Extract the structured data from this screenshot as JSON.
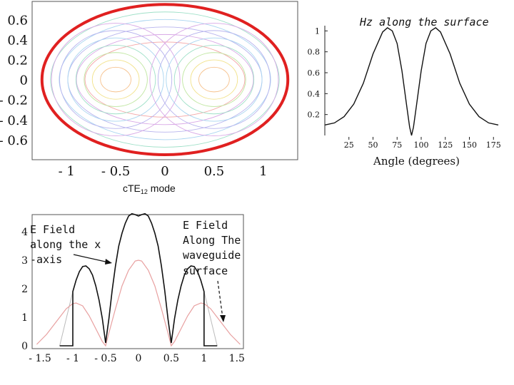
{
  "slide": {
    "mode_caption_main": "cTE",
    "mode_caption_sub": "12",
    "mode_caption_tail": " mode",
    "annotation_xaxis": [
      "E Field",
      "along the x",
      "-axis"
    ],
    "annotation_surface": [
      "E Field",
      "Along The",
      "waveguide",
      "surface"
    ]
  },
  "chart_data": [
    {
      "type": "contour",
      "title": "",
      "x_ticks": [
        "- 1",
        "- 0.5",
        "0",
        "0.5",
        "1"
      ],
      "x_tick_values": [
        -1,
        -0.5,
        0,
        0.5,
        1
      ],
      "y_ticks": [
        "0.6",
        "0.4",
        "0.2",
        "0",
        "- 0.2",
        "- 0.4",
        "- 0.6"
      ],
      "y_tick_values": [
        0.6,
        0.4,
        0.2,
        0,
        -0.2,
        -0.4,
        -0.6
      ],
      "xlim": [
        -1.35,
        1.35
      ],
      "ylim": [
        -0.8,
        0.78
      ],
      "boundary": {
        "shape": "ellipse",
        "semi_major": 1.25,
        "semi_minor": 0.75,
        "color": "#e02020"
      },
      "field_peaks_x": [
        -0.5,
        0.5
      ],
      "contour_levels": 12
    },
    {
      "type": "line",
      "title": "Hz along the surface",
      "xlabel": "Angle (degrees)",
      "x_ticks": [
        25,
        50,
        75,
        100,
        125,
        150,
        175
      ],
      "y_ticks": [
        0.2,
        0.4,
        0.6,
        0.8,
        1
      ],
      "xlim": [
        0,
        180
      ],
      "ylim": [
        0,
        1.05
      ],
      "series": [
        {
          "x": [
            0,
            10,
            20,
            30,
            40,
            50,
            60,
            65,
            70,
            75,
            80,
            85,
            88,
            90,
            92,
            95,
            100,
            105,
            110,
            115,
            120,
            130,
            140,
            150,
            160,
            170,
            180
          ],
          "y": [
            0.1,
            0.12,
            0.18,
            0.3,
            0.5,
            0.78,
            0.99,
            1.03,
            1.0,
            0.88,
            0.62,
            0.28,
            0.08,
            0.0,
            0.08,
            0.28,
            0.62,
            0.88,
            1.0,
            1.03,
            0.99,
            0.78,
            0.5,
            0.3,
            0.18,
            0.12,
            0.1
          ],
          "color": "#111111"
        }
      ]
    },
    {
      "type": "line",
      "title": "",
      "x_ticks": [
        "- 1.5",
        "- 1",
        "- 0.5",
        "0",
        "0.5",
        "1",
        "1.5"
      ],
      "x_tick_values": [
        -1.5,
        -1,
        -0.5,
        0,
        0.5,
        1,
        1.5
      ],
      "y_ticks": [
        0,
        1,
        2,
        3,
        4
      ],
      "xlim": [
        -1.62,
        1.6
      ],
      "ylim": [
        -0.1,
        4.6
      ],
      "series": [
        {
          "x": [
            -1.2,
            -1,
            -1,
            -0.95,
            -0.9,
            -0.85,
            -0.8,
            -0.75,
            -0.7,
            -0.65,
            -0.6,
            -0.55,
            -0.5,
            -0.45,
            -0.4,
            -0.35,
            -0.3,
            -0.25,
            -0.2,
            -0.15,
            -0.1,
            -0.05,
            0,
            0.05,
            0.1,
            0.15,
            0.2,
            0.25,
            0.3,
            0.35,
            0.4,
            0.45,
            0.5,
            0.55,
            0.6,
            0.65,
            0.7,
            0.75,
            0.8,
            0.85,
            0.9,
            0.95,
            1,
            1,
            1.2
          ],
          "y": [
            0,
            0,
            1.9,
            2.3,
            2.6,
            2.78,
            2.8,
            2.7,
            2.48,
            2.1,
            1.6,
            0.95,
            0.1,
            0.95,
            1.95,
            2.8,
            3.5,
            3.95,
            4.3,
            4.55,
            4.63,
            4.6,
            4.55,
            4.6,
            4.63,
            4.55,
            4.3,
            3.95,
            3.5,
            2.8,
            1.95,
            0.95,
            0.1,
            0.95,
            1.6,
            2.1,
            2.48,
            2.7,
            2.8,
            2.78,
            2.6,
            2.3,
            1.9,
            0,
            0
          ],
          "color": "#111111"
        },
        {
          "x": [
            -1.55,
            -1.4,
            -1.25,
            -1.1,
            -1.0,
            -0.95,
            -0.85,
            -0.75,
            -0.65,
            -0.55,
            -0.5,
            -0.45,
            -0.35,
            -0.25,
            -0.15,
            -0.05,
            0,
            0.05,
            0.15,
            0.25,
            0.35,
            0.45,
            0.5,
            0.55,
            0.65,
            0.75,
            0.85,
            0.95,
            1.0,
            1.1,
            1.25,
            1.4,
            1.55
          ],
          "y": [
            0.05,
            0.4,
            0.85,
            1.3,
            1.48,
            1.5,
            1.4,
            1.05,
            0.6,
            0.15,
            0.0,
            0.45,
            1.3,
            2.1,
            2.65,
            2.97,
            3.0,
            2.97,
            2.65,
            2.1,
            1.3,
            0.45,
            0.0,
            0.15,
            0.6,
            1.05,
            1.4,
            1.5,
            1.48,
            1.3,
            0.85,
            0.4,
            0.05
          ],
          "color": "#e8a0a0"
        }
      ]
    }
  ]
}
